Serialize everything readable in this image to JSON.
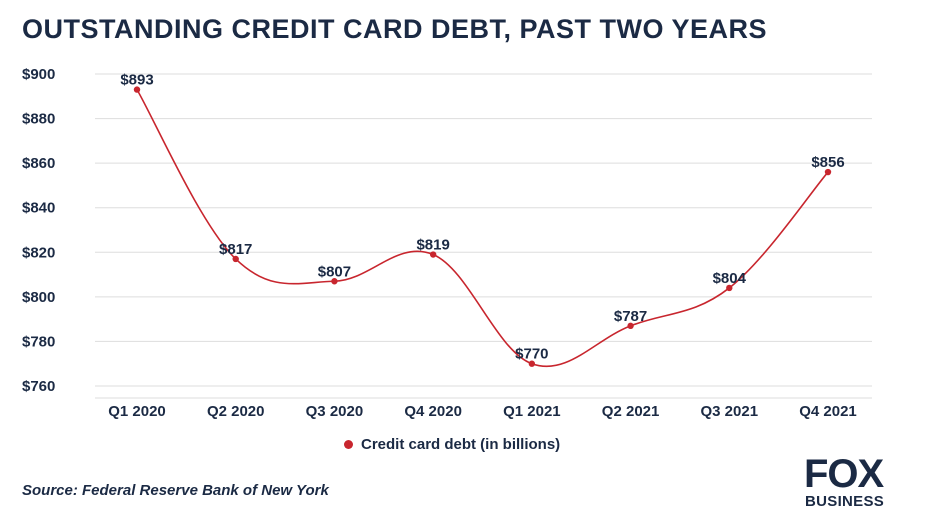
{
  "header": {
    "title": "OUTSTANDING CREDIT CARD DEBT, PAST TWO YEARS"
  },
  "chart_data": {
    "type": "line",
    "title": "OUTSTANDING CREDIT CARD DEBT, PAST TWO YEARS",
    "categories": [
      "Q1 2020",
      "Q2 2020",
      "Q3 2020",
      "Q4 2020",
      "Q1 2021",
      "Q2 2021",
      "Q3 2021",
      "Q4 2021"
    ],
    "series": [
      {
        "name": "Credit card debt (in billions)",
        "values": [
          893,
          817,
          807,
          819,
          770,
          787,
          804,
          856
        ],
        "labels": [
          "$893",
          "$817",
          "$807",
          "$819",
          "$770",
          "$787",
          "$804",
          "$856"
        ],
        "color": "#c8262e"
      }
    ],
    "y_ticks": [
      900,
      880,
      860,
      840,
      820,
      800,
      780,
      760
    ],
    "y_tick_labels": [
      "$900",
      "$880",
      "$860",
      "$840",
      "$820",
      "$800",
      "$780",
      "$760"
    ],
    "ylim": [
      760,
      900
    ],
    "grid": true,
    "legend_position": "bottom-center",
    "smooth": true
  },
  "legend": {
    "label": "Credit card debt (in billions)",
    "color": "#c8262e"
  },
  "footer": {
    "source": "Source: Federal Reserve Bank of New York",
    "logo_top": "FOX",
    "logo_bottom": "BUSINESS"
  },
  "colors": {
    "text": "#1b2a44",
    "grid": "#dddddd",
    "series": "#c8262e"
  }
}
